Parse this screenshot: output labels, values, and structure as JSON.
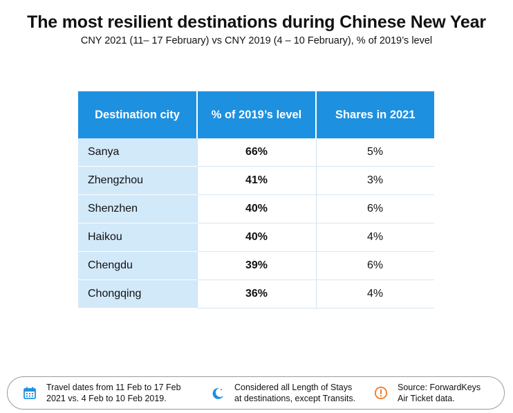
{
  "title": "The most resilient destinations during Chinese New Year",
  "subtitle": "CNY 2021 (11– 17 February) vs CNY 2019 (4 – 10 February), % of 2019’s level",
  "chart_data": {
    "type": "table",
    "columns": [
      "Destination city",
      "% of 2019’s level",
      "Shares in 2021"
    ],
    "rows": [
      [
        "Sanya",
        "66%",
        "5%"
      ],
      [
        "Zhengzhou",
        "41%",
        "3%"
      ],
      [
        "Shenzhen",
        "40%",
        "6%"
      ],
      [
        "Haikou",
        "40%",
        "4%"
      ],
      [
        "Chengdu",
        "39%",
        "6%"
      ],
      [
        "Chongqing",
        "36%",
        "4%"
      ]
    ]
  },
  "footer": {
    "items": [
      {
        "icon": "calendar-icon",
        "line1": "Travel dates from 11 Feb to 17 Feb",
        "line2": "2021 vs. 4 Feb to 10 Feb 2019."
      },
      {
        "icon": "moon-icon",
        "line1": "Considered all Length of Stays",
        "line2": "at destinations, except Transits."
      },
      {
        "icon": "info-icon",
        "line1": "Source: ForwardKeys",
        "line2": "Air Ticket data."
      }
    ]
  },
  "colors": {
    "header_bg": "#1e90e0",
    "city_cell_bg": "#d2e9fa",
    "icon_blue": "#1e90e0",
    "icon_orange": "#f07a20"
  }
}
